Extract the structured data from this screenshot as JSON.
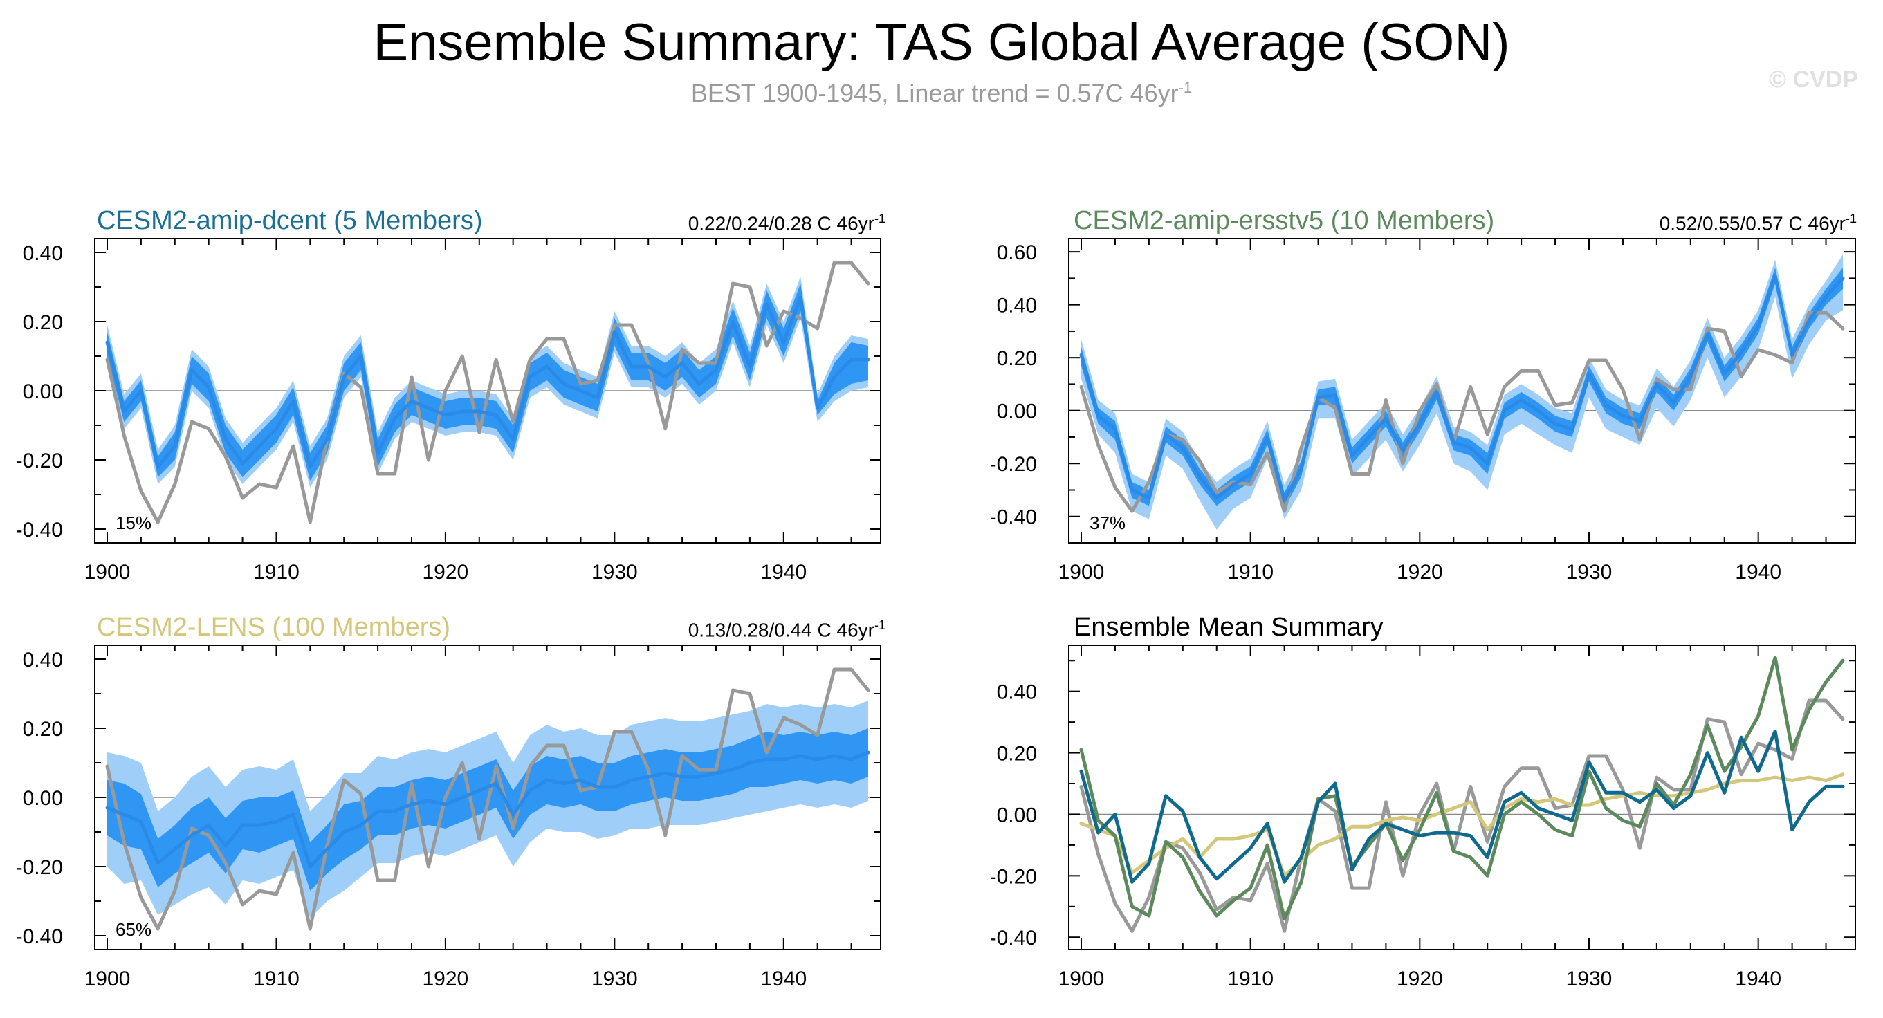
{
  "header": {
    "title": "Ensemble Summary: TAS Global Average (SON)",
    "subtitle": "BEST 1900-1945, Linear trend = 0.57C 46yr",
    "subtitle_sup": "-1",
    "watermark": "© CVDP"
  },
  "colors": {
    "observed": "#999999",
    "ensemble_mean": "#2a8ae8",
    "inner_band": "#2f96f3",
    "outer_band": "#9fcff9",
    "dcent": "#0f6a8e",
    "ersstv5": "#5c8a5d",
    "lens": "#d2c77a"
  },
  "chart_data": [
    {
      "type": "area",
      "title": "CESM2-amip-dcent (5 Members)",
      "title_color": "#1b6e94",
      "trend_text": "0.22/0.24/0.28 C 46yr",
      "trend_sup": "-1",
      "percent_label": "15%",
      "xlim": [
        1900,
        1945
      ],
      "ylim": [
        -0.44,
        0.44
      ],
      "yticks": [
        "0.40",
        "0.20",
        "0.00",
        "-0.20",
        "-0.40"
      ],
      "xticks": [
        "1900",
        "1910",
        "1920",
        "1930",
        "1940"
      ],
      "x_start": 1900,
      "observed": [
        0.09,
        -0.13,
        -0.29,
        -0.38,
        -0.27,
        -0.09,
        -0.11,
        -0.19,
        -0.31,
        -0.27,
        -0.28,
        -0.16,
        -0.38,
        -0.14,
        0.05,
        0.01,
        -0.24,
        -0.24,
        0.04,
        -0.2,
        0.0,
        0.1,
        -0.12,
        0.09,
        -0.09,
        0.09,
        0.15,
        0.15,
        0.02,
        0.03,
        0.19,
        0.19,
        0.08,
        -0.11,
        0.12,
        0.08,
        0.08,
        0.31,
        0.3,
        0.13,
        0.23,
        0.21,
        0.18,
        0.37,
        0.37,
        0.31
      ],
      "ensemble_mean": [
        0.14,
        -0.06,
        0.0,
        -0.22,
        -0.16,
        0.06,
        0.01,
        -0.14,
        -0.21,
        -0.16,
        -0.11,
        -0.03,
        -0.22,
        -0.14,
        0.04,
        0.1,
        -0.18,
        -0.08,
        -0.03,
        -0.05,
        -0.07,
        -0.06,
        -0.06,
        -0.07,
        -0.14,
        0.04,
        0.07,
        0.02,
        0.0,
        -0.02,
        0.17,
        0.07,
        0.07,
        0.04,
        0.08,
        0.02,
        0.06,
        0.2,
        0.07,
        0.25,
        0.14,
        0.27,
        -0.05,
        0.04,
        0.09,
        0.09
      ],
      "inner_low": [
        0.1,
        -0.09,
        -0.03,
        -0.25,
        -0.2,
        0.02,
        -0.03,
        -0.18,
        -0.25,
        -0.2,
        -0.15,
        -0.07,
        -0.26,
        -0.18,
        0.0,
        0.06,
        -0.22,
        -0.12,
        -0.07,
        -0.09,
        -0.11,
        -0.1,
        -0.1,
        -0.11,
        -0.18,
        0.0,
        0.03,
        -0.02,
        -0.04,
        -0.06,
        0.13,
        0.03,
        0.03,
        0.0,
        0.04,
        -0.02,
        0.02,
        0.16,
        0.03,
        0.21,
        0.1,
        0.23,
        -0.07,
        -0.01,
        0.02,
        0.03
      ],
      "inner_high": [
        0.17,
        -0.03,
        0.03,
        -0.19,
        -0.12,
        0.1,
        0.05,
        -0.1,
        -0.17,
        -0.12,
        -0.07,
        0.01,
        -0.18,
        -0.1,
        0.08,
        0.14,
        -0.14,
        -0.04,
        0.01,
        -0.01,
        -0.03,
        -0.02,
        -0.02,
        -0.03,
        -0.1,
        0.08,
        0.11,
        0.06,
        0.04,
        0.02,
        0.21,
        0.11,
        0.11,
        0.08,
        0.12,
        0.06,
        0.1,
        0.24,
        0.11,
        0.29,
        0.18,
        0.31,
        -0.03,
        0.08,
        0.14,
        0.13
      ],
      "outer_low": [
        0.08,
        -0.11,
        -0.05,
        -0.27,
        -0.22,
        0.0,
        -0.05,
        -0.2,
        -0.27,
        -0.22,
        -0.17,
        -0.09,
        -0.28,
        -0.2,
        -0.02,
        0.04,
        -0.24,
        -0.14,
        -0.09,
        -0.11,
        -0.13,
        -0.12,
        -0.12,
        -0.13,
        -0.2,
        -0.02,
        0.01,
        -0.04,
        -0.06,
        -0.08,
        0.11,
        0.01,
        0.01,
        -0.02,
        0.02,
        -0.04,
        0.0,
        0.14,
        0.01,
        0.19,
        0.08,
        0.21,
        -0.09,
        -0.03,
        0.0,
        0.01
      ],
      "outer_high": [
        0.19,
        -0.01,
        0.05,
        -0.17,
        -0.1,
        0.12,
        0.07,
        -0.08,
        -0.15,
        -0.1,
        -0.05,
        0.03,
        -0.16,
        -0.08,
        0.1,
        0.16,
        -0.12,
        -0.02,
        0.03,
        0.01,
        -0.01,
        0.0,
        0.0,
        -0.01,
        -0.08,
        0.1,
        0.13,
        0.08,
        0.06,
        0.04,
        0.23,
        0.13,
        0.13,
        0.1,
        0.14,
        0.08,
        0.12,
        0.26,
        0.13,
        0.31,
        0.2,
        0.33,
        -0.01,
        0.1,
        0.16,
        0.15
      ]
    },
    {
      "type": "area",
      "title": "CESM2-amip-ersstv5 (10 Members)",
      "title_color": "#5c8a5d",
      "trend_text": "0.52/0.55/0.57 C 46yr",
      "trend_sup": "-1",
      "percent_label": "37%",
      "xlim": [
        1900,
        1945
      ],
      "ylim": [
        -0.5,
        0.65
      ],
      "yticks": [
        "0.60",
        "0.40",
        "0.20",
        "0.00",
        "-0.20",
        "-0.40"
      ],
      "xticks": [
        "1900",
        "1910",
        "1920",
        "1930",
        "1940"
      ],
      "x_start": 1900,
      "observed": [
        0.09,
        -0.13,
        -0.29,
        -0.38,
        -0.27,
        -0.09,
        -0.11,
        -0.19,
        -0.31,
        -0.27,
        -0.28,
        -0.16,
        -0.38,
        -0.14,
        0.05,
        0.01,
        -0.24,
        -0.24,
        0.04,
        -0.2,
        0.0,
        0.1,
        -0.12,
        0.09,
        -0.09,
        0.09,
        0.15,
        0.15,
        0.02,
        0.03,
        0.19,
        0.19,
        0.08,
        -0.11,
        0.12,
        0.08,
        0.08,
        0.31,
        0.3,
        0.13,
        0.23,
        0.21,
        0.18,
        0.37,
        0.37,
        0.31
      ],
      "ensemble_mean": [
        0.21,
        -0.02,
        -0.07,
        -0.3,
        -0.33,
        -0.09,
        -0.14,
        -0.25,
        -0.33,
        -0.28,
        -0.24,
        -0.1,
        -0.34,
        -0.22,
        0.05,
        0.06,
        -0.17,
        -0.1,
        -0.03,
        -0.15,
        -0.05,
        0.07,
        -0.12,
        -0.14,
        -0.2,
        0.0,
        0.04,
        0.0,
        -0.05,
        -0.07,
        0.14,
        0.02,
        -0.02,
        -0.04,
        0.1,
        0.03,
        0.13,
        0.29,
        0.14,
        0.22,
        0.32,
        0.51,
        0.21,
        0.34,
        0.43,
        0.5
      ],
      "inner_low": [
        0.17,
        -0.05,
        -0.11,
        -0.33,
        -0.36,
        -0.12,
        -0.17,
        -0.28,
        -0.36,
        -0.31,
        -0.27,
        -0.13,
        -0.37,
        -0.25,
        0.02,
        0.02,
        -0.2,
        -0.13,
        -0.06,
        -0.18,
        -0.08,
        0.04,
        -0.15,
        -0.17,
        -0.24,
        -0.03,
        0.01,
        -0.03,
        -0.08,
        -0.1,
        0.11,
        -0.01,
        -0.05,
        -0.07,
        0.07,
        0.0,
        0.1,
        0.26,
        0.11,
        0.19,
        0.29,
        0.48,
        0.18,
        0.31,
        0.4,
        0.46
      ],
      "inner_high": [
        0.24,
        0.01,
        -0.04,
        -0.27,
        -0.3,
        -0.06,
        -0.11,
        -0.22,
        -0.3,
        -0.25,
        -0.21,
        -0.07,
        -0.31,
        -0.19,
        0.08,
        0.09,
        -0.14,
        -0.07,
        0.0,
        -0.12,
        -0.02,
        0.1,
        -0.09,
        -0.11,
        -0.16,
        0.03,
        0.07,
        0.03,
        -0.02,
        -0.04,
        0.17,
        0.05,
        0.01,
        -0.01,
        0.13,
        0.06,
        0.16,
        0.32,
        0.17,
        0.25,
        0.35,
        0.54,
        0.24,
        0.37,
        0.46,
        0.54
      ],
      "outer_low": [
        0.12,
        -0.09,
        -0.16,
        -0.38,
        -0.41,
        -0.17,
        -0.22,
        -0.34,
        -0.45,
        -0.37,
        -0.33,
        -0.18,
        -0.41,
        -0.3,
        -0.03,
        -0.03,
        -0.25,
        -0.18,
        -0.11,
        -0.23,
        -0.13,
        -0.01,
        -0.2,
        -0.23,
        -0.3,
        -0.09,
        -0.05,
        -0.09,
        -0.13,
        -0.16,
        0.05,
        -0.07,
        -0.1,
        -0.13,
        0.01,
        -0.06,
        0.04,
        0.2,
        0.05,
        0.13,
        0.23,
        0.43,
        0.12,
        0.25,
        0.34,
        0.38
      ],
      "outer_high": [
        0.27,
        0.04,
        -0.01,
        -0.24,
        -0.27,
        -0.03,
        -0.08,
        -0.19,
        -0.27,
        -0.22,
        -0.18,
        -0.04,
        -0.28,
        -0.16,
        0.11,
        0.12,
        -0.11,
        -0.04,
        0.03,
        -0.09,
        0.01,
        0.13,
        -0.06,
        -0.08,
        -0.13,
        0.06,
        0.1,
        0.06,
        0.01,
        -0.01,
        0.2,
        0.08,
        0.04,
        0.02,
        0.16,
        0.09,
        0.19,
        0.35,
        0.2,
        0.28,
        0.38,
        0.57,
        0.27,
        0.4,
        0.49,
        0.59
      ]
    },
    {
      "type": "area",
      "title": "CESM2-LENS (100 Members)",
      "title_color": "#d2c77a",
      "trend_text": "0.13/0.28/0.44 C 46yr",
      "trend_sup": "-1",
      "percent_label": "65%",
      "xlim": [
        1900,
        1945
      ],
      "ylim": [
        -0.44,
        0.44
      ],
      "yticks": [
        "0.40",
        "0.20",
        "0.00",
        "-0.20",
        "-0.40"
      ],
      "xticks": [
        "1900",
        "1910",
        "1920",
        "1930",
        "1940"
      ],
      "x_start": 1900,
      "observed": [
        0.09,
        -0.13,
        -0.29,
        -0.38,
        -0.27,
        -0.09,
        -0.11,
        -0.19,
        -0.31,
        -0.27,
        -0.28,
        -0.16,
        -0.38,
        -0.14,
        0.05,
        0.01,
        -0.24,
        -0.24,
        0.04,
        -0.2,
        0.0,
        0.1,
        -0.12,
        0.09,
        -0.09,
        0.09,
        0.15,
        0.15,
        0.02,
        0.03,
        0.19,
        0.19,
        0.08,
        -0.11,
        0.12,
        0.08,
        0.08,
        0.31,
        0.3,
        0.13,
        0.23,
        0.21,
        0.18,
        0.37,
        0.37,
        0.31
      ],
      "ensemble_mean": [
        -0.03,
        -0.05,
        -0.07,
        -0.19,
        -0.15,
        -0.11,
        -0.08,
        -0.14,
        -0.08,
        -0.08,
        -0.07,
        -0.05,
        -0.2,
        -0.15,
        -0.1,
        -0.08,
        -0.04,
        -0.04,
        -0.02,
        -0.01,
        -0.02,
        0.0,
        0.02,
        0.04,
        -0.05,
        0.02,
        0.05,
        0.04,
        0.05,
        0.03,
        0.03,
        0.05,
        0.06,
        0.07,
        0.06,
        0.06,
        0.07,
        0.08,
        0.1,
        0.11,
        0.11,
        0.12,
        0.11,
        0.12,
        0.11,
        0.13
      ],
      "inner_low": [
        -0.11,
        -0.14,
        -0.15,
        -0.26,
        -0.22,
        -0.19,
        -0.16,
        -0.22,
        -0.15,
        -0.16,
        -0.14,
        -0.12,
        -0.27,
        -0.22,
        -0.18,
        -0.15,
        -0.11,
        -0.11,
        -0.09,
        -0.08,
        -0.09,
        -0.07,
        -0.05,
        -0.03,
        -0.12,
        -0.05,
        -0.02,
        -0.03,
        -0.02,
        -0.04,
        -0.04,
        -0.02,
        -0.01,
        0.0,
        -0.01,
        -0.01,
        0.0,
        0.01,
        0.03,
        0.03,
        0.04,
        0.05,
        0.04,
        0.05,
        0.04,
        0.06
      ],
      "inner_high": [
        0.05,
        0.04,
        0.01,
        -0.12,
        -0.08,
        -0.03,
        0.0,
        -0.06,
        -0.01,
        0.0,
        0.0,
        0.02,
        -0.13,
        -0.08,
        -0.02,
        -0.01,
        0.03,
        0.03,
        0.05,
        0.06,
        0.05,
        0.07,
        0.09,
        0.11,
        0.02,
        0.09,
        0.12,
        0.11,
        0.12,
        0.1,
        0.1,
        0.12,
        0.13,
        0.14,
        0.13,
        0.13,
        0.14,
        0.15,
        0.17,
        0.19,
        0.18,
        0.19,
        0.18,
        0.19,
        0.18,
        0.2
      ],
      "outer_low": [
        -0.2,
        -0.25,
        -0.24,
        -0.34,
        -0.31,
        -0.28,
        -0.26,
        -0.31,
        -0.24,
        -0.25,
        -0.23,
        -0.21,
        -0.35,
        -0.3,
        -0.27,
        -0.23,
        -0.19,
        -0.19,
        -0.17,
        -0.16,
        -0.17,
        -0.15,
        -0.13,
        -0.11,
        -0.2,
        -0.13,
        -0.09,
        -0.1,
        -0.1,
        -0.12,
        -0.11,
        -0.09,
        -0.09,
        -0.08,
        -0.08,
        -0.08,
        -0.07,
        -0.06,
        -0.05,
        -0.04,
        -0.03,
        -0.02,
        -0.03,
        -0.02,
        -0.03,
        -0.01
      ],
      "outer_high": [
        0.13,
        0.12,
        0.1,
        -0.04,
        0.0,
        0.06,
        0.09,
        0.03,
        0.08,
        0.09,
        0.08,
        0.11,
        -0.04,
        0.01,
        0.07,
        0.07,
        0.12,
        0.11,
        0.13,
        0.14,
        0.13,
        0.15,
        0.17,
        0.19,
        0.1,
        0.18,
        0.21,
        0.19,
        0.2,
        0.18,
        0.18,
        0.21,
        0.22,
        0.23,
        0.22,
        0.22,
        0.23,
        0.24,
        0.25,
        0.27,
        0.26,
        0.27,
        0.26,
        0.27,
        0.26,
        0.28
      ]
    },
    {
      "type": "line",
      "title": "Ensemble Mean Summary",
      "title_color": "#000000",
      "xlim": [
        1900,
        1945
      ],
      "ylim": [
        -0.44,
        0.55
      ],
      "yticks": [
        "0.40",
        "0.20",
        "0.00",
        "-0.20",
        "-0.40"
      ],
      "xticks": [
        "1900",
        "1910",
        "1920",
        "1930",
        "1940"
      ],
      "x_start": 1900,
      "series": [
        {
          "color_key": "observed",
          "values": [
            0.09,
            -0.13,
            -0.29,
            -0.38,
            -0.27,
            -0.09,
            -0.11,
            -0.19,
            -0.31,
            -0.27,
            -0.28,
            -0.16,
            -0.38,
            -0.14,
            0.05,
            0.01,
            -0.24,
            -0.24,
            0.04,
            -0.2,
            0.0,
            0.1,
            -0.12,
            0.09,
            -0.09,
            0.09,
            0.15,
            0.15,
            0.02,
            0.03,
            0.19,
            0.19,
            0.08,
            -0.11,
            0.12,
            0.08,
            0.08,
            0.31,
            0.3,
            0.13,
            0.23,
            0.21,
            0.18,
            0.37,
            0.37,
            0.31
          ]
        },
        {
          "color_key": "lens",
          "values": [
            -0.03,
            -0.05,
            -0.07,
            -0.19,
            -0.15,
            -0.11,
            -0.08,
            -0.14,
            -0.08,
            -0.08,
            -0.07,
            -0.05,
            -0.2,
            -0.15,
            -0.1,
            -0.08,
            -0.04,
            -0.04,
            -0.02,
            -0.01,
            -0.02,
            0.0,
            0.02,
            0.04,
            -0.05,
            0.02,
            0.05,
            0.04,
            0.05,
            0.03,
            0.03,
            0.05,
            0.06,
            0.07,
            0.06,
            0.06,
            0.07,
            0.08,
            0.1,
            0.11,
            0.11,
            0.12,
            0.11,
            0.12,
            0.11,
            0.13
          ]
        },
        {
          "color_key": "ersstv5",
          "values": [
            0.21,
            -0.02,
            -0.07,
            -0.3,
            -0.33,
            -0.09,
            -0.14,
            -0.25,
            -0.33,
            -0.28,
            -0.24,
            -0.1,
            -0.34,
            -0.22,
            0.05,
            0.06,
            -0.17,
            -0.1,
            -0.03,
            -0.15,
            -0.05,
            0.07,
            -0.12,
            -0.14,
            -0.2,
            0.0,
            0.04,
            0.0,
            -0.05,
            -0.07,
            0.14,
            0.02,
            -0.02,
            -0.04,
            0.1,
            0.03,
            0.13,
            0.29,
            0.14,
            0.22,
            0.32,
            0.51,
            0.21,
            0.34,
            0.43,
            0.5
          ]
        },
        {
          "color_key": "dcent",
          "values": [
            0.14,
            -0.06,
            0.0,
            -0.22,
            -0.16,
            0.06,
            0.01,
            -0.14,
            -0.21,
            -0.16,
            -0.11,
            -0.03,
            -0.22,
            -0.14,
            0.04,
            0.1,
            -0.18,
            -0.08,
            -0.03,
            -0.05,
            -0.07,
            -0.06,
            -0.06,
            -0.07,
            -0.14,
            0.04,
            0.07,
            0.02,
            0.0,
            -0.02,
            0.17,
            0.07,
            0.07,
            0.04,
            0.08,
            0.02,
            0.06,
            0.2,
            0.07,
            0.25,
            0.14,
            0.27,
            -0.05,
            0.04,
            0.09,
            0.09
          ]
        }
      ]
    }
  ]
}
